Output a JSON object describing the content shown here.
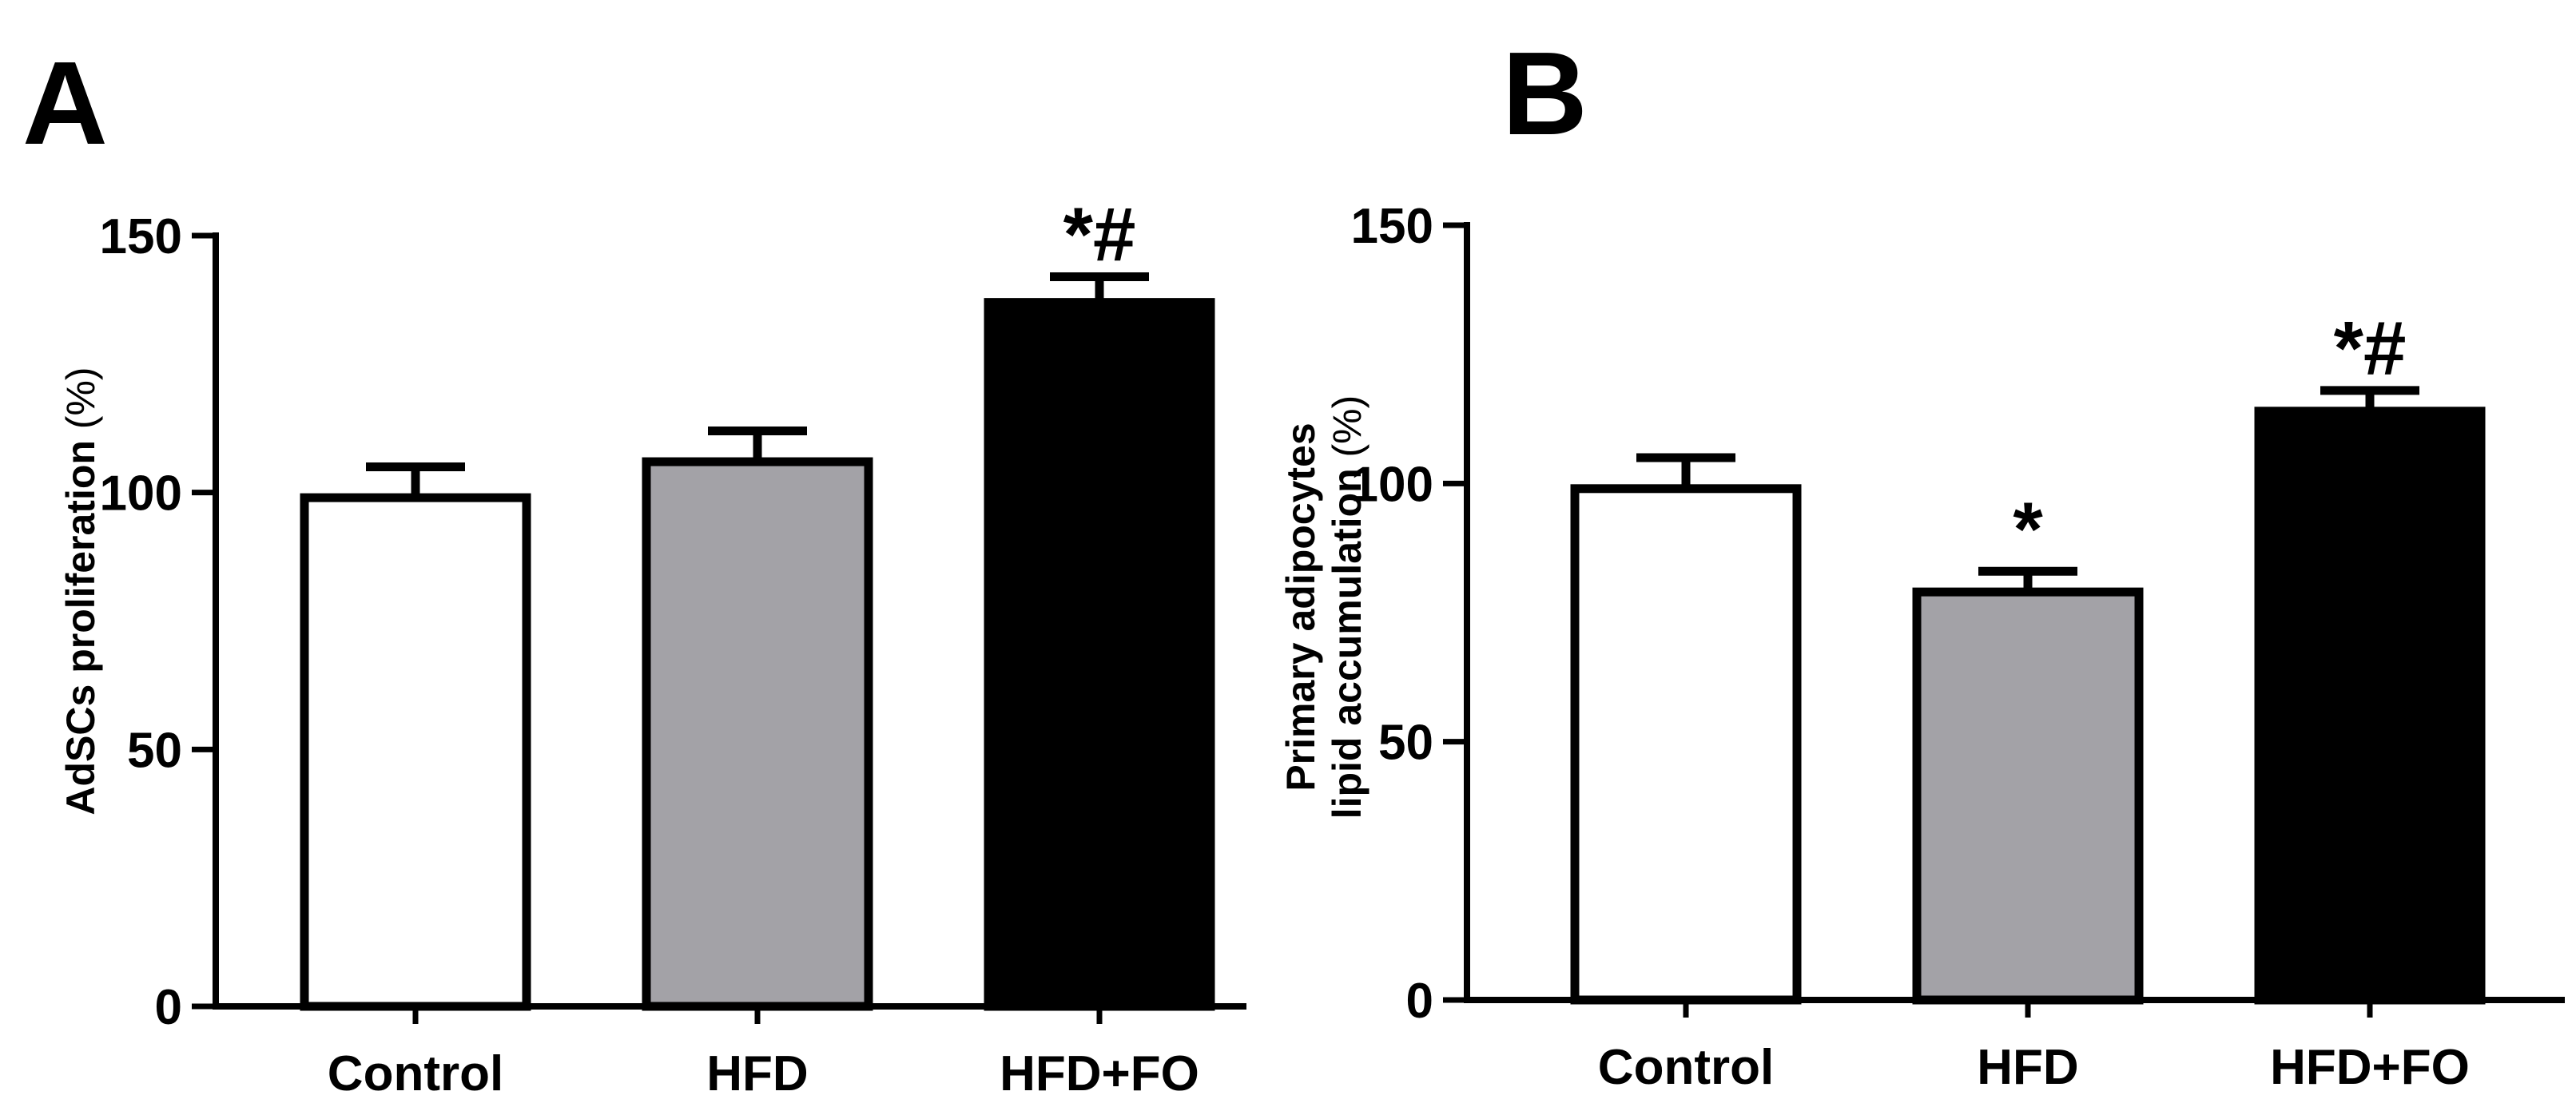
{
  "chart_data": [
    {
      "type": "bar",
      "panel": "A",
      "categories": [
        "Control",
        "HFD",
        "HFD+FO"
      ],
      "values": [
        99,
        106,
        137
      ],
      "errors": [
        6,
        6,
        5
      ],
      "bar_colors": [
        "#ffffff",
        "#a3a2a7",
        "#000000"
      ],
      "annotations": [
        "",
        "",
        "*#"
      ],
      "ylabel_lines": [
        {
          "bold": "AdSCs proliferation ",
          "light": "(%)"
        }
      ],
      "yticks": [
        0,
        50,
        100,
        150
      ],
      "ylim": [
        0,
        150
      ],
      "grid": false,
      "legend": false
    },
    {
      "type": "bar",
      "panel": "B",
      "categories": [
        "Control",
        "HFD",
        "HFD+FO"
      ],
      "values": [
        99,
        79,
        114
      ],
      "errors": [
        6,
        4,
        4
      ],
      "bar_colors": [
        "#ffffff",
        "#a3a2a7",
        "#000000"
      ],
      "annotations": [
        "",
        "*",
        "*#"
      ],
      "ylabel_lines": [
        {
          "bold": "Primary adipocytes",
          "light": ""
        },
        {
          "bold": "lipid accumulation ",
          "light": "(%)"
        }
      ],
      "yticks": [
        0,
        50,
        100,
        150
      ],
      "ylim": [
        0,
        150
      ],
      "grid": false,
      "legend": false
    }
  ]
}
